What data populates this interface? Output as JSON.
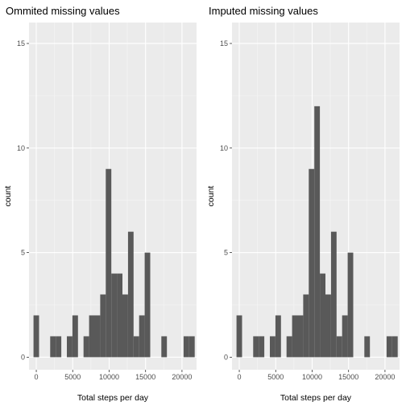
{
  "chart_data": [
    {
      "type": "bar",
      "title": "Ommited missing values",
      "xlabel": "Total steps per day",
      "ylabel": "count",
      "x_ticks": [
        "0",
        "5000",
        "10000",
        "15000",
        "20000"
      ],
      "y_ticks": [
        "0",
        "5",
        "10",
        "15"
      ],
      "xlim": [
        -1000,
        22000
      ],
      "ylim": [
        -0.6,
        16
      ],
      "bin_width": 763,
      "bins": [
        {
          "x": 0,
          "count": 2
        },
        {
          "x": 1526,
          "count": 0
        },
        {
          "x": 2289,
          "count": 1
        },
        {
          "x": 3052,
          "count": 1
        },
        {
          "x": 3815,
          "count": 0
        },
        {
          "x": 4578,
          "count": 1
        },
        {
          "x": 5341,
          "count": 2
        },
        {
          "x": 6104,
          "count": 0
        },
        {
          "x": 6867,
          "count": 1
        },
        {
          "x": 7630,
          "count": 2
        },
        {
          "x": 8393,
          "count": 2
        },
        {
          "x": 9156,
          "count": 3
        },
        {
          "x": 9919,
          "count": 9
        },
        {
          "x": 10682,
          "count": 4
        },
        {
          "x": 11445,
          "count": 4
        },
        {
          "x": 12208,
          "count": 3
        },
        {
          "x": 12971,
          "count": 6
        },
        {
          "x": 13734,
          "count": 1
        },
        {
          "x": 14497,
          "count": 2
        },
        {
          "x": 15260,
          "count": 5
        },
        {
          "x": 17549,
          "count": 1
        },
        {
          "x": 20601,
          "count": 1
        },
        {
          "x": 21364,
          "count": 1
        }
      ]
    },
    {
      "type": "bar",
      "title": "Imputed missing values",
      "xlabel": "Total steps per day",
      "ylabel": "count",
      "x_ticks": [
        "0",
        "5000",
        "10000",
        "15000",
        "20000"
      ],
      "y_ticks": [
        "0",
        "5",
        "10",
        "15"
      ],
      "xlim": [
        -1000,
        22000
      ],
      "ylim": [
        -0.6,
        16
      ],
      "bin_width": 763,
      "bins": [
        {
          "x": 0,
          "count": 2
        },
        {
          "x": 1526,
          "count": 0
        },
        {
          "x": 2289,
          "count": 1
        },
        {
          "x": 3052,
          "count": 1
        },
        {
          "x": 3815,
          "count": 0
        },
        {
          "x": 4578,
          "count": 1
        },
        {
          "x": 5341,
          "count": 2
        },
        {
          "x": 6104,
          "count": 0
        },
        {
          "x": 6867,
          "count": 1
        },
        {
          "x": 7630,
          "count": 2
        },
        {
          "x": 8393,
          "count": 2
        },
        {
          "x": 9156,
          "count": 3
        },
        {
          "x": 9919,
          "count": 9
        },
        {
          "x": 10682,
          "count": 12
        },
        {
          "x": 11445,
          "count": 4
        },
        {
          "x": 12208,
          "count": 3
        },
        {
          "x": 12971,
          "count": 6
        },
        {
          "x": 13734,
          "count": 1
        },
        {
          "x": 14497,
          "count": 2
        },
        {
          "x": 15260,
          "count": 5
        },
        {
          "x": 17549,
          "count": 1
        },
        {
          "x": 20601,
          "count": 1
        },
        {
          "x": 21364,
          "count": 1
        }
      ]
    }
  ],
  "colors": {
    "panel_bg": "#ebebeb",
    "grid_major": "#ffffff",
    "grid_minor": "#f5f5f5",
    "bar_fill": "#595959",
    "tick_text": "#4d4d4d"
  }
}
